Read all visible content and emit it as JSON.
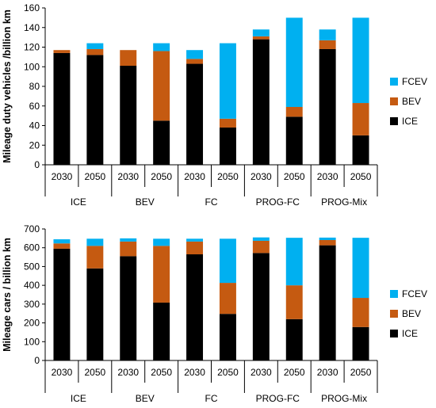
{
  "colors": {
    "ICE": "#000000",
    "BEV": "#C55A11",
    "FCEV": "#00B0F0",
    "axis": "#000000",
    "grid": "#B3B3B3"
  },
  "chart_data": [
    {
      "type": "bar",
      "stacked": true,
      "ylabel": "Mileage duty vehicles /billion km",
      "ylim": [
        0,
        160
      ],
      "yticks": [
        0,
        20,
        40,
        60,
        80,
        100,
        120,
        140,
        160
      ],
      "grid": false,
      "legend": "right",
      "groups": [
        "ICE",
        "BEV",
        "FC",
        "PROG-FC",
        "PROG-Mix"
      ],
      "categories": [
        "2030",
        "2050",
        "2030",
        "2050",
        "2030",
        "2050",
        "2030",
        "2050",
        "2030",
        "2050"
      ],
      "series": [
        {
          "name": "ICE",
          "values": [
            114,
            112,
            101,
            45,
            103,
            38,
            128,
            49,
            118,
            30
          ]
        },
        {
          "name": "BEV",
          "values": [
            3,
            6,
            16,
            71,
            5,
            9,
            3,
            10,
            9,
            33
          ]
        },
        {
          "name": "FCEV",
          "values": [
            0,
            6,
            0,
            8,
            9,
            77,
            7,
            91,
            11,
            87
          ]
        }
      ]
    },
    {
      "type": "bar",
      "stacked": true,
      "ylabel": "Mileage cars / billion km",
      "ylim": [
        0,
        700
      ],
      "yticks": [
        0,
        100,
        200,
        300,
        400,
        500,
        600,
        700
      ],
      "grid": false,
      "legend": "right",
      "groups": [
        "ICE",
        "BEV",
        "FC",
        "PROG-FC",
        "PROG-Mix"
      ],
      "categories": [
        "2030",
        "2050",
        "2030",
        "2050",
        "2030",
        "2050",
        "2030",
        "2050",
        "2030",
        "2050"
      ],
      "series": [
        {
          "name": "ICE",
          "values": [
            595,
            490,
            555,
            308,
            565,
            248,
            572,
            220,
            613,
            178
          ]
        },
        {
          "name": "BEV",
          "values": [
            28,
            120,
            78,
            302,
            68,
            165,
            65,
            180,
            28,
            155
          ]
        },
        {
          "name": "FCEV",
          "values": [
            22,
            38,
            17,
            38,
            15,
            235,
            18,
            253,
            13,
            320
          ]
        }
      ]
    }
  ]
}
